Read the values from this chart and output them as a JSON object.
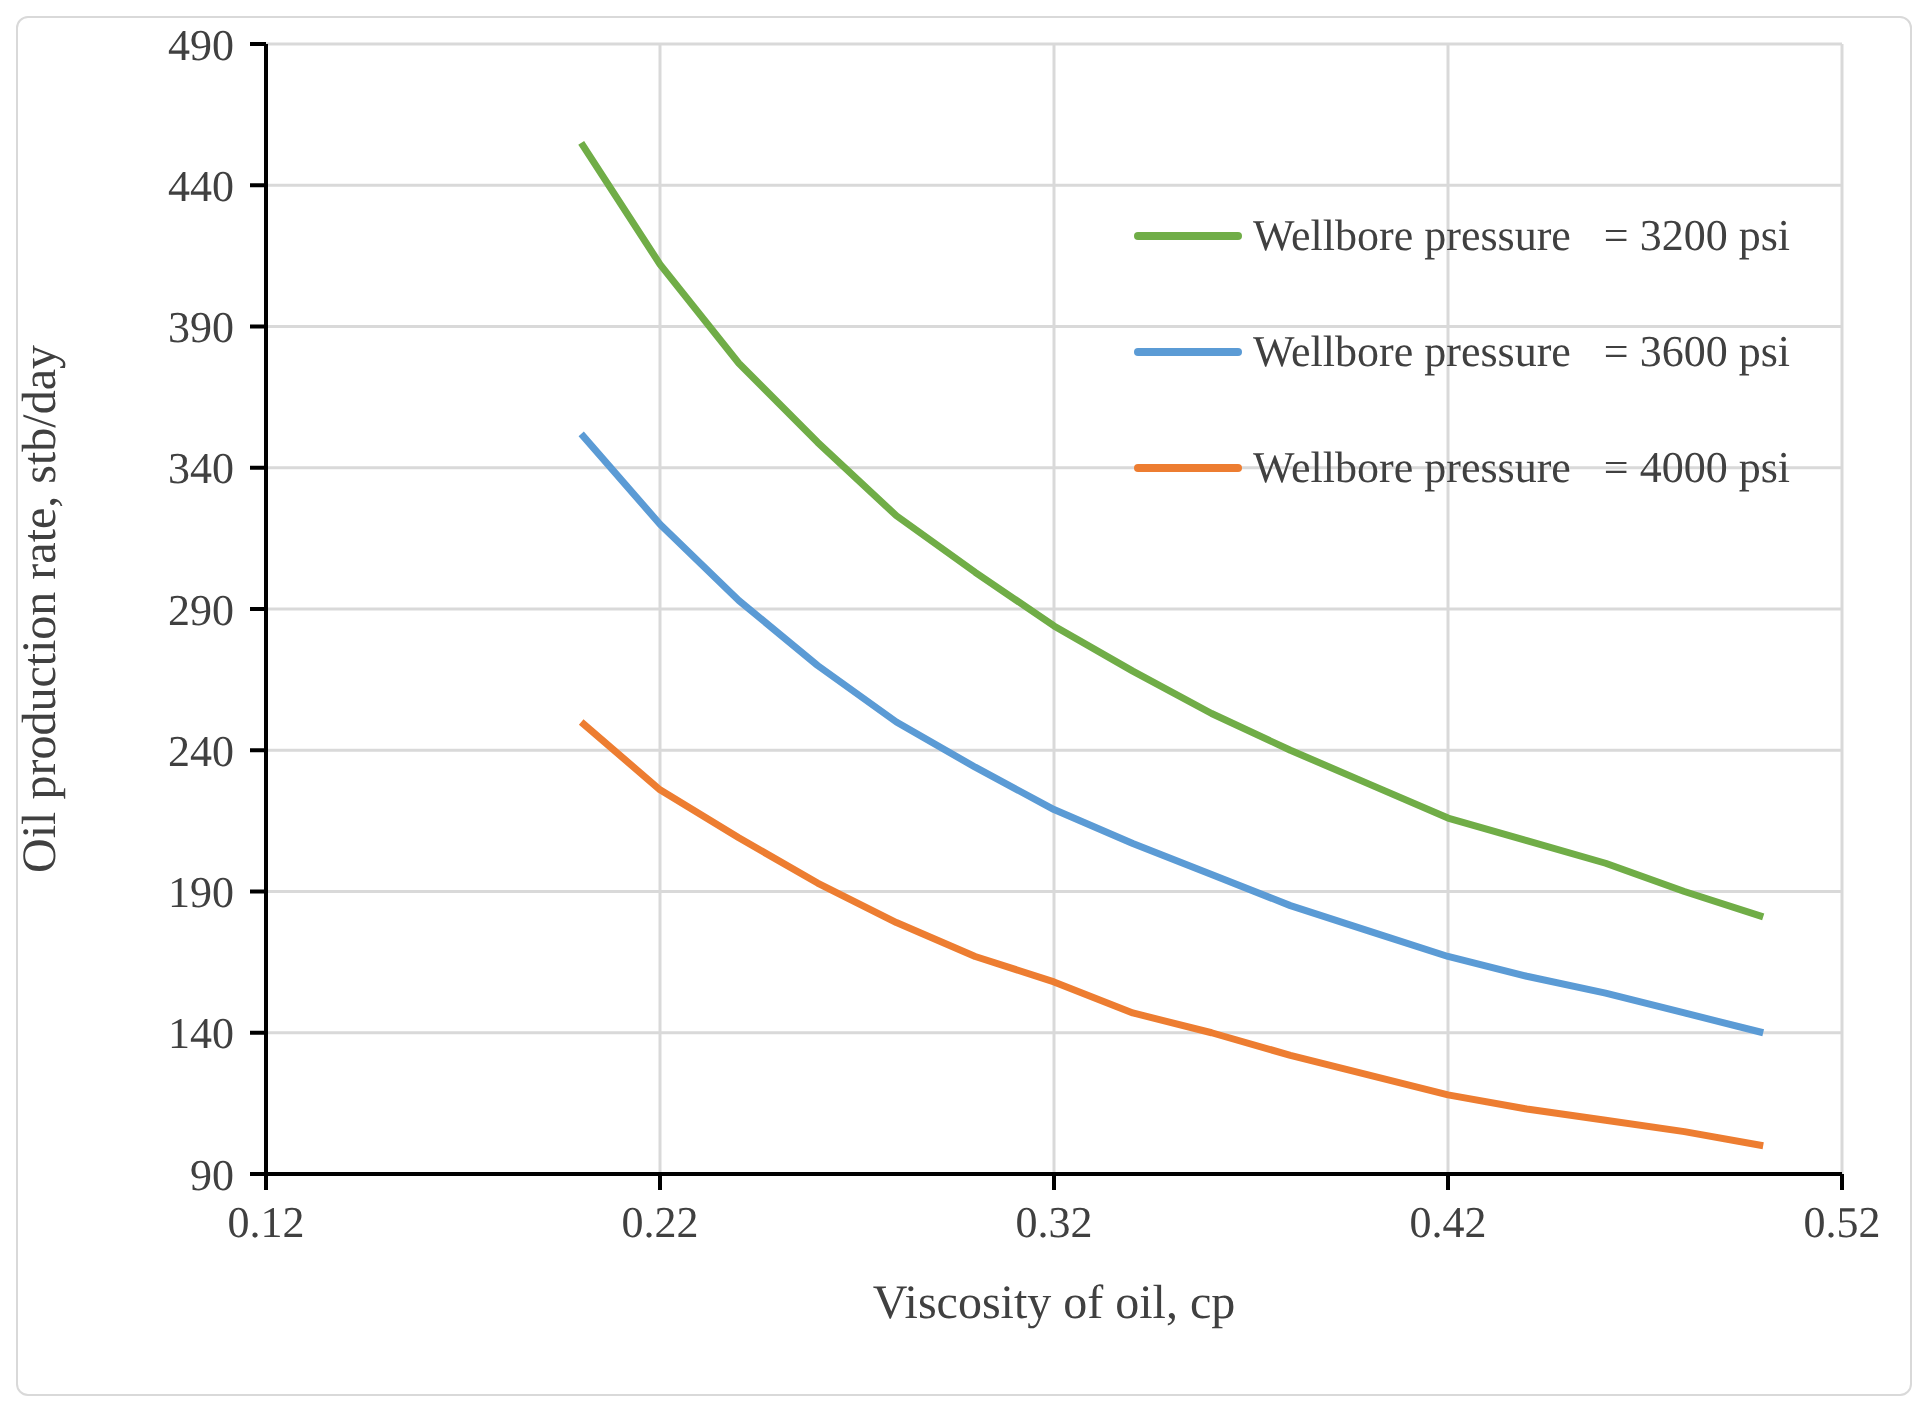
{
  "chart_data": {
    "type": "line",
    "xlabel": "Viscosity of oil, cp",
    "ylabel": "Oil production rate, stb/day",
    "x": [
      0.2,
      0.22,
      0.24,
      0.26,
      0.28,
      0.3,
      0.32,
      0.34,
      0.36,
      0.38,
      0.4,
      0.42,
      0.44,
      0.46,
      0.48,
      0.5
    ],
    "series": [
      {
        "name": "Wellbore pressure   = 3200 psi",
        "color": "#70ad47",
        "values": [
          455,
          412,
          377,
          349,
          323,
          303,
          284,
          268,
          253,
          240,
          228,
          216,
          208,
          200,
          190,
          181
        ]
      },
      {
        "name": "Wellbore pressure   = 3600 psi",
        "color": "#5b9bd5",
        "values": [
          352,
          320,
          293,
          270,
          250,
          234,
          219,
          207,
          196,
          185,
          176,
          167,
          160,
          154,
          147,
          140
        ]
      },
      {
        "name": "Wellbore pressure   = 4000 psi",
        "color": "#ed7d31",
        "values": [
          250,
          226,
          209,
          193,
          179,
          167,
          158,
          147,
          140,
          132,
          125,
          118,
          113,
          109,
          105,
          100
        ]
      }
    ],
    "xlim": [
      0.12,
      0.52
    ],
    "xticks": [
      0.12,
      0.22,
      0.32,
      0.42,
      0.52
    ],
    "ylim": [
      90,
      490
    ],
    "yticks": [
      90,
      140,
      190,
      240,
      290,
      340,
      390,
      440,
      490
    ],
    "grid": true,
    "legend": "top right",
    "marker": "none",
    "line_style": "solid"
  }
}
